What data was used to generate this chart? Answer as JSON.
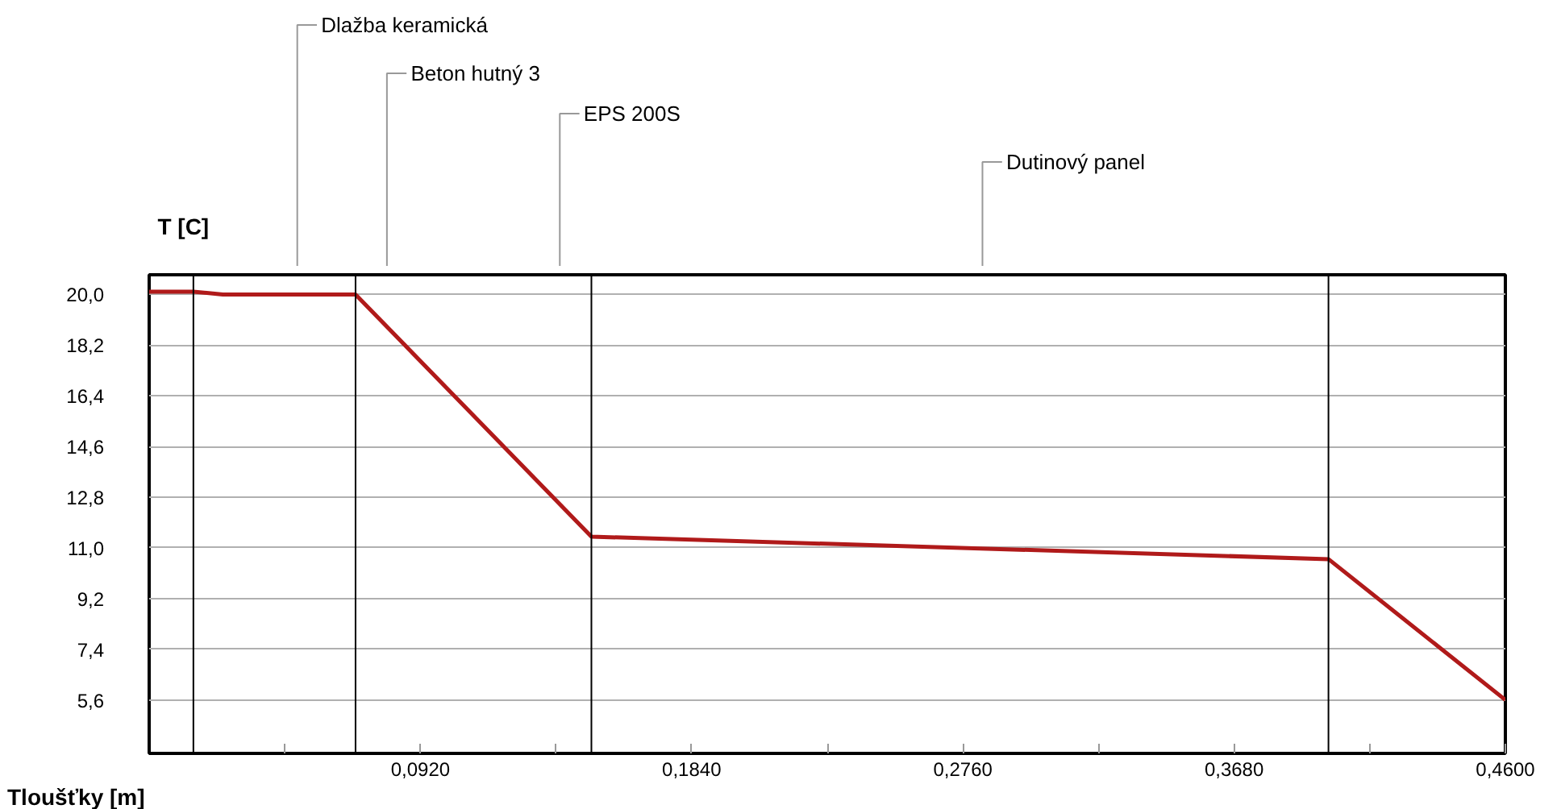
{
  "chart_data": {
    "type": "line",
    "xlabel": "Tloušťky [m]",
    "ylabel": "T [C]",
    "x": [
      0,
      0.015,
      0.025,
      0.07,
      0.15,
      0.4,
      0.46
    ],
    "series": [
      {
        "color": "#b01a1a",
        "values": [
          20.1,
          20.1,
          20.0,
          20.0,
          11.4,
          10.6,
          5.6
        ]
      }
    ],
    "xlim": [
      0,
      0.46
    ],
    "ylim": [
      3.7,
      20.7
    ],
    "xticks": [
      {
        "value": 0.046,
        "label": null
      },
      {
        "value": 0.092,
        "label": "0,0920"
      },
      {
        "value": 0.138,
        "label": null
      },
      {
        "value": 0.184,
        "label": "0,1840"
      },
      {
        "value": 0.23,
        "label": null
      },
      {
        "value": 0.276,
        "label": "0,2760"
      },
      {
        "value": 0.322,
        "label": null
      },
      {
        "value": 0.368,
        "label": "0,3680"
      },
      {
        "value": 0.414,
        "label": null
      },
      {
        "value": 0.46,
        "label": "0,4600"
      }
    ],
    "yticks": [
      {
        "value": 5.6,
        "label": "5,6"
      },
      {
        "value": 7.4,
        "label": "7,4"
      },
      {
        "value": 9.2,
        "label": "9,2"
      },
      {
        "value": 11.0,
        "label": "11,0"
      },
      {
        "value": 12.8,
        "label": "12,8"
      },
      {
        "value": 14.6,
        "label": "14,6"
      },
      {
        "value": 16.4,
        "label": "16,4"
      },
      {
        "value": 18.2,
        "label": "18,2"
      },
      {
        "value": 20.0,
        "label": "20,0"
      }
    ],
    "grid": "y",
    "ref_lines": [
      {
        "axis": "x",
        "value": 0.015,
        "color": "#000000"
      },
      {
        "axis": "x",
        "value": 0.07,
        "color": "#000000"
      },
      {
        "axis": "x",
        "value": 0.15,
        "color": "#000000"
      },
      {
        "axis": "x",
        "value": 0.4,
        "color": "#000000"
      }
    ],
    "annotations": [
      "Dlažba keramická",
      "Beton hutný 3",
      "EPS 200S",
      "Dutinový panel"
    ]
  }
}
